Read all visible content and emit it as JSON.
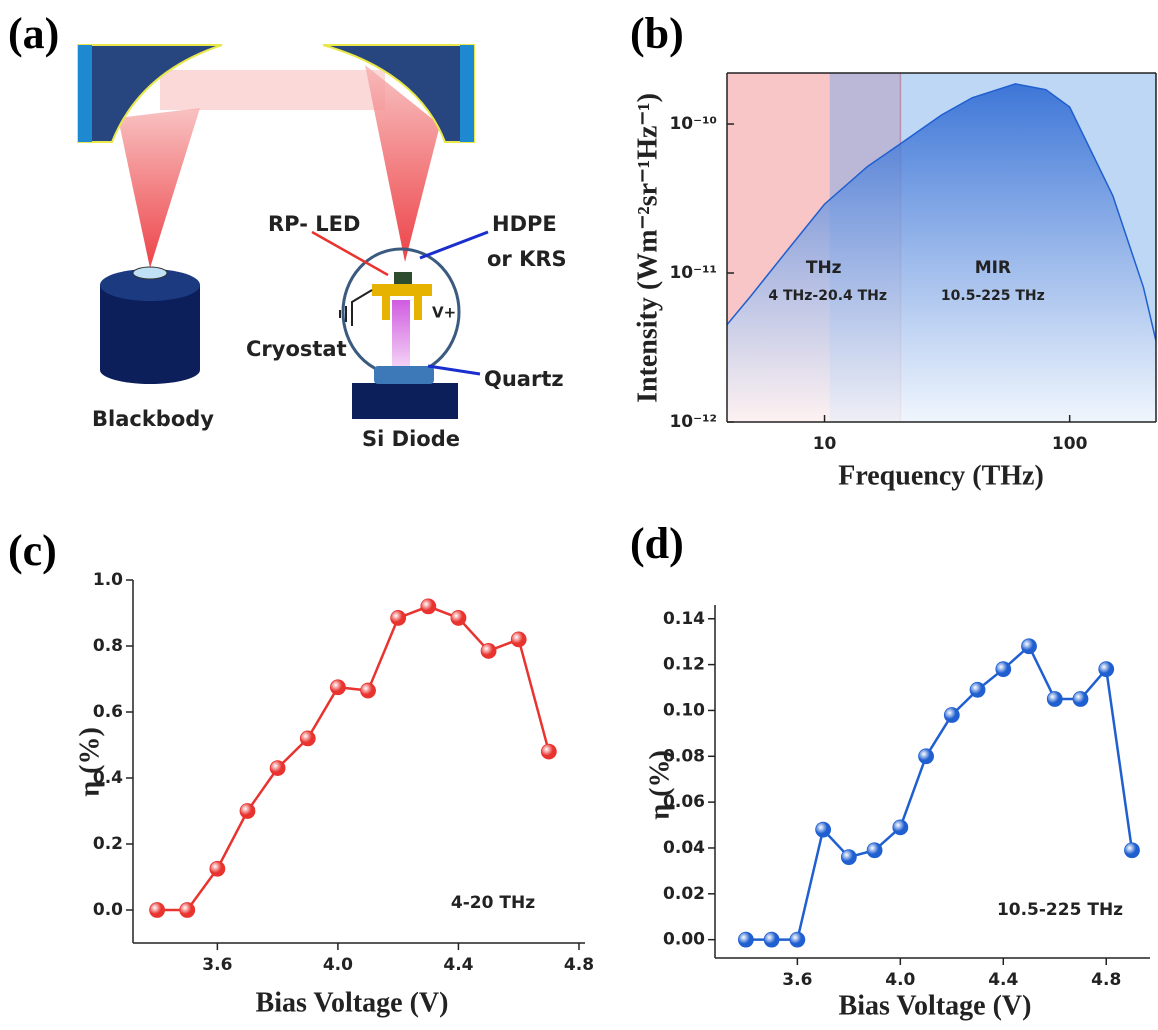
{
  "diagram": {
    "panel_label": "(a)",
    "labels": [
      "RP- LED",
      "HDPE",
      "or KRS",
      "V+",
      "Cryostat",
      "Quartz",
      "Blackbody",
      "Si Diode"
    ]
  },
  "chart_data": [
    {
      "type": "area",
      "panel_label": "(b)",
      "x_label": "Frequency (THz)",
      "y_label": "Intensity (Wm⁻²sr⁻¹Hz⁻¹)",
      "x_scale": "log",
      "y_scale": "log",
      "color": "#1f5fd0",
      "x": [
        4,
        5,
        7,
        10,
        15,
        20,
        30,
        40,
        60,
        80,
        100,
        150,
        200,
        225
      ],
      "values": [
        4.5e-12,
        7e-12,
        1.4e-11,
        2.9e-11,
        5.2e-11,
        7.2e-11,
        1.15e-10,
        1.5e-10,
        1.86e-10,
        1.7e-10,
        1.3e-10,
        3.3e-11,
        8e-12,
        3.5e-12
      ],
      "regions": [
        {
          "name": "THz",
          "range_label": "4 THz-20.4 THz",
          "range": [
            4,
            20.4
          ],
          "color": "#f08080"
        },
        {
          "name": "MIR",
          "range_label": "10.5-225 THz",
          "range": [
            10.5,
            225
          ],
          "color": "#6fa6e8"
        }
      ],
      "xlim": [
        4,
        225
      ],
      "ylim": [
        1e-12,
        2.2e-10
      ],
      "xticks": [
        10,
        100
      ],
      "yticks": [
        {
          "value": 1e-12,
          "label": "10⁻¹²"
        },
        {
          "value": 1e-11,
          "label": "10⁻¹¹"
        },
        {
          "value": 1e-10,
          "label": "10⁻¹⁰"
        }
      ]
    },
    {
      "type": "line",
      "panel_label": "(c)",
      "x_label": "Bias Voltage (V)",
      "y_label": "η (%)",
      "annotation": "4-20 THz",
      "color": "#e8332f",
      "x": [
        3.4,
        3.5,
        3.6,
        3.7,
        3.8,
        3.9,
        4.0,
        4.1,
        4.2,
        4.3,
        4.4,
        4.5,
        4.6,
        4.7
      ],
      "values": [
        0,
        0,
        0.125,
        0.3,
        0.43,
        0.52,
        0.675,
        0.665,
        0.885,
        0.92,
        0.885,
        0.785,
        0.82,
        0.48
      ],
      "xlim": [
        3.32,
        4.82
      ],
      "ylim": [
        -0.1,
        1.0
      ],
      "xticks": [
        3.6,
        {
          "value": 4.0,
          "label": "4.0"
        },
        4.4,
        4.8
      ],
      "yticks": [
        {
          "value": 0,
          "label": "0.0"
        },
        0.2,
        0.4,
        0.6,
        0.8,
        {
          "value": 1.0,
          "label": "1.0"
        }
      ]
    },
    {
      "type": "line",
      "panel_label": "(d)",
      "x_label": "Bias Voltage (V)",
      "y_label": "η (%)",
      "annotation": "10.5-225 THz",
      "color": "#1f5fd0",
      "x": [
        3.4,
        3.5,
        3.6,
        3.7,
        3.8,
        3.9,
        4.0,
        4.1,
        4.2,
        4.3,
        4.4,
        4.5,
        4.6,
        4.7,
        4.8,
        4.9
      ],
      "values": [
        0,
        0,
        0,
        0.048,
        0.036,
        0.039,
        0.049,
        0.08,
        0.098,
        0.109,
        0.118,
        0.128,
        0.105,
        0.105,
        0.118,
        0.039
      ],
      "xlim": [
        3.28,
        4.97
      ],
      "ylim": [
        -0.008,
        0.146
      ],
      "xticks": [
        3.6,
        {
          "value": 4.0,
          "label": "4.0"
        },
        4.4,
        4.8
      ],
      "yticks": [
        {
          "value": 0,
          "label": "0.00"
        },
        0.02,
        0.04,
        0.06,
        0.08,
        {
          "value": 0.1,
          "label": "0.10"
        },
        0.12,
        0.14
      ]
    }
  ]
}
